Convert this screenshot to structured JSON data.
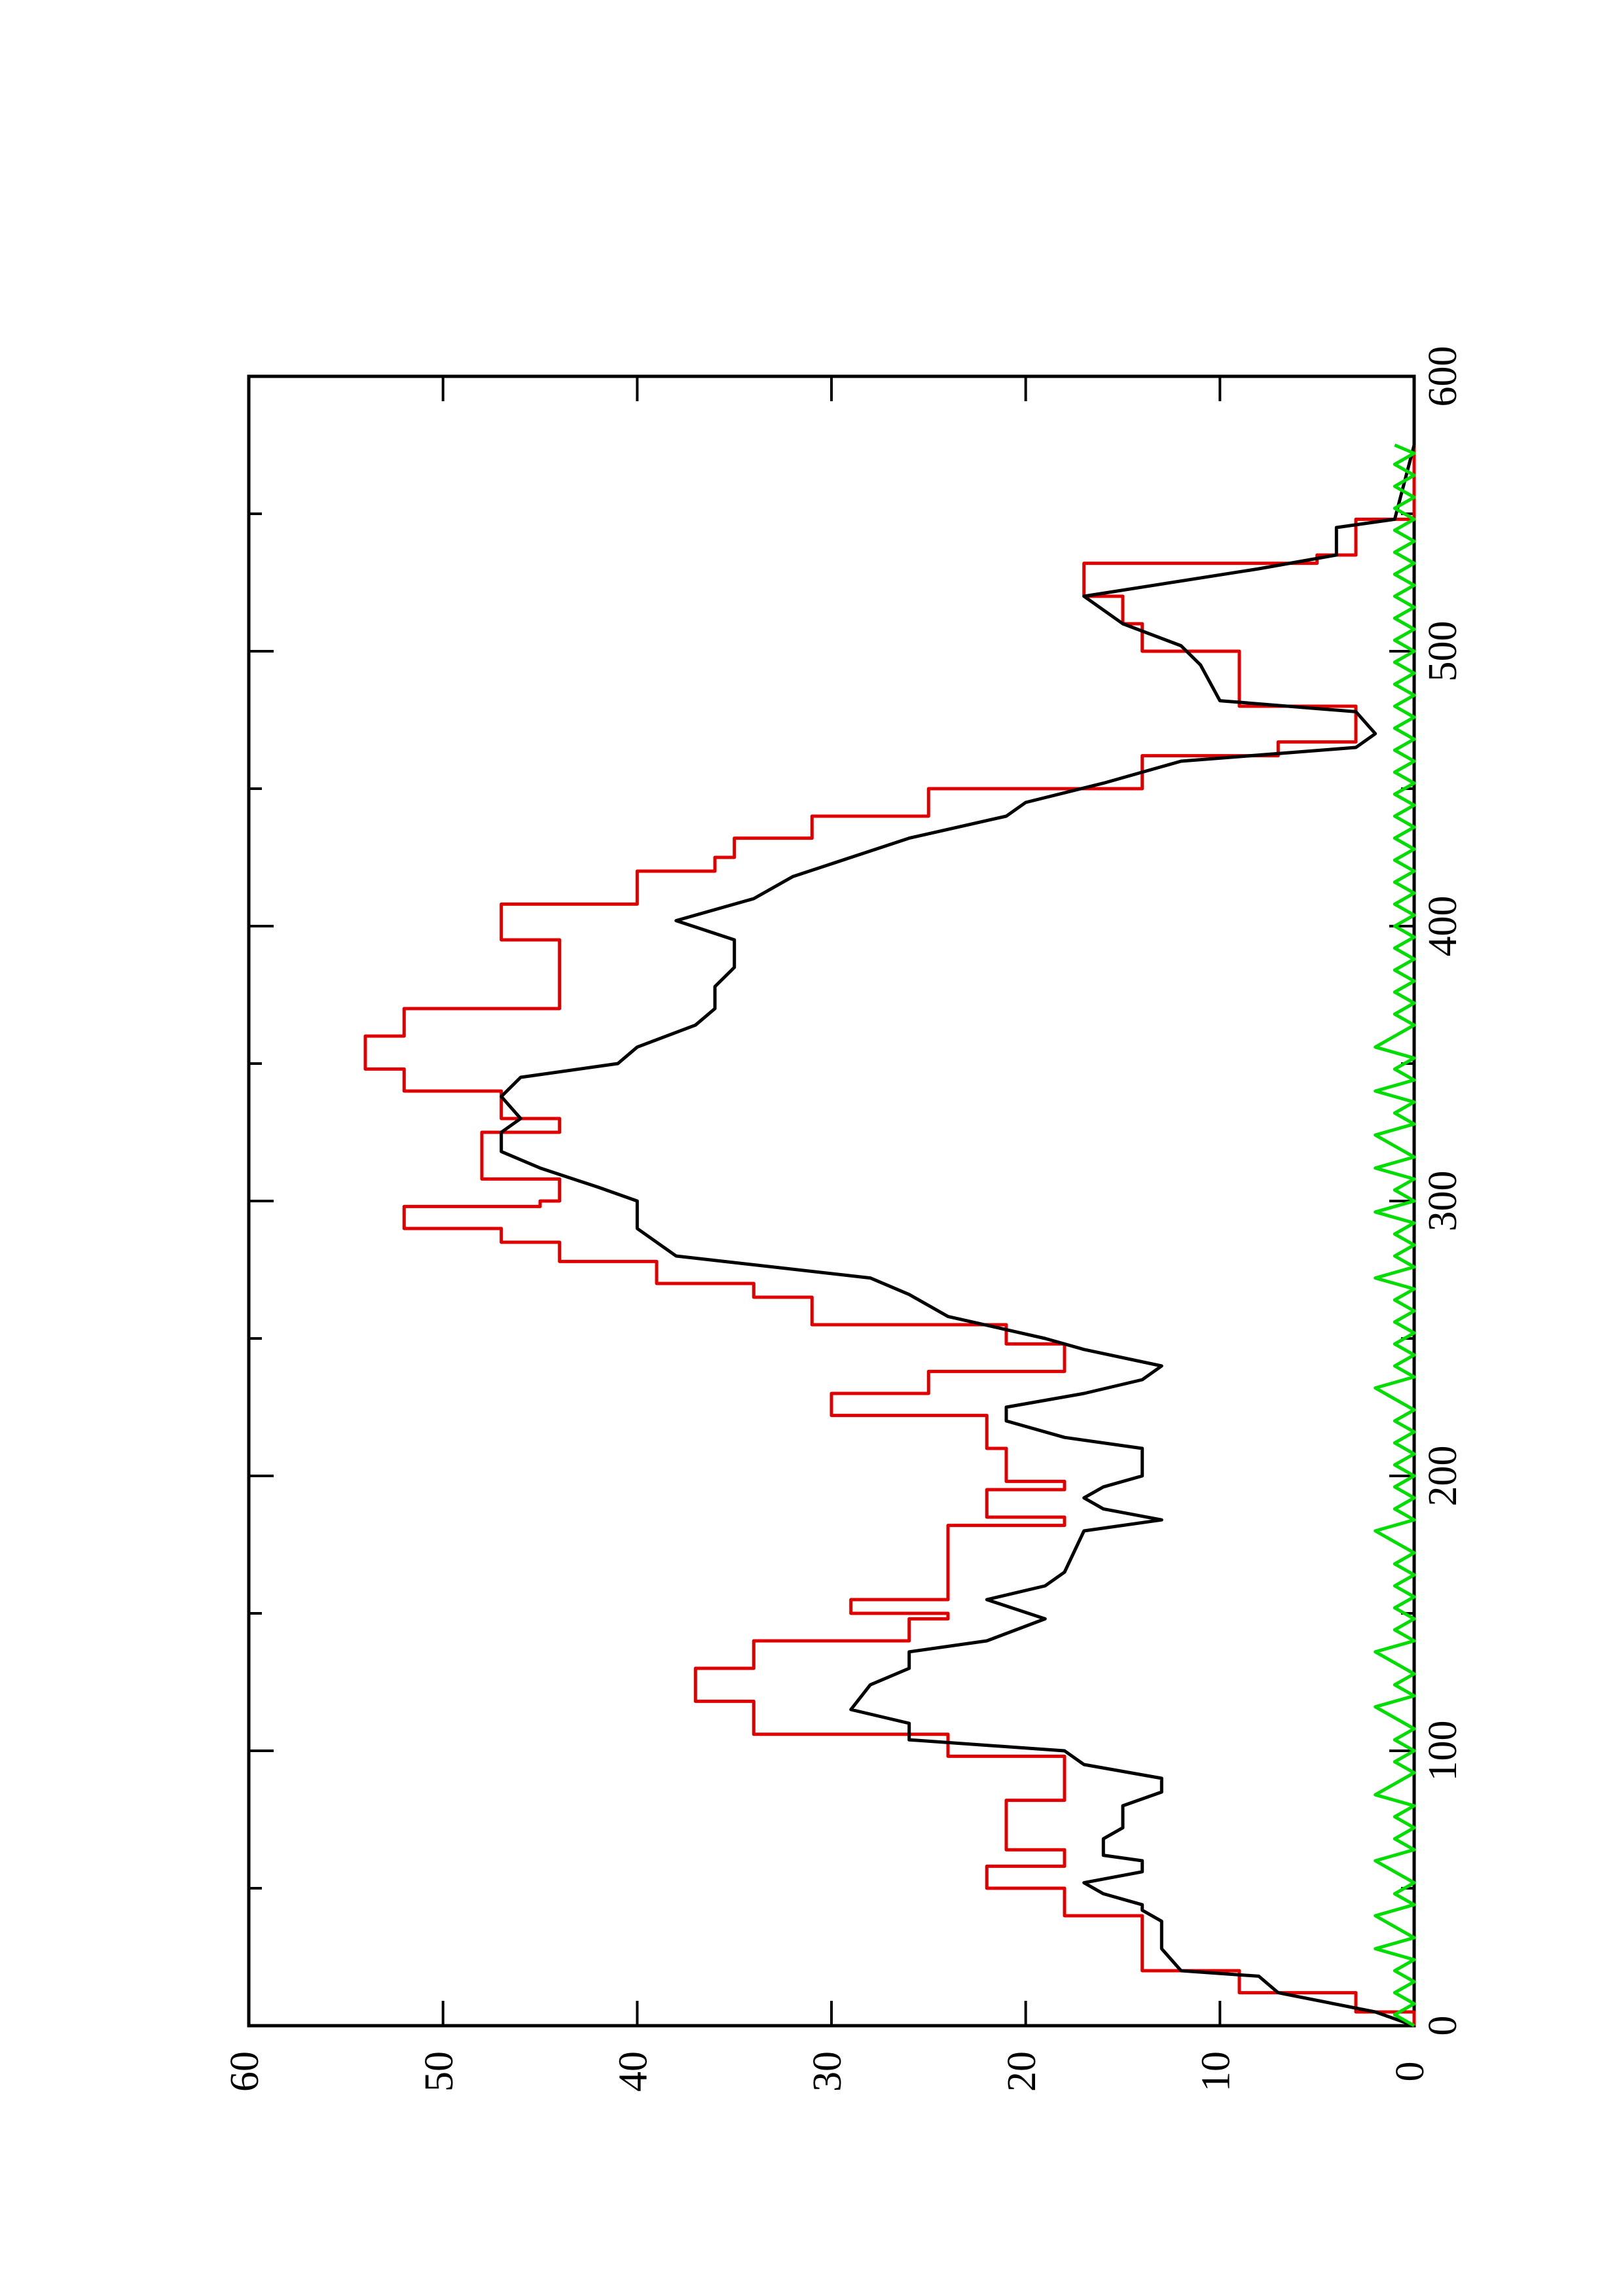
{
  "chart_data": {
    "type": "line",
    "orientation": "rotated-90-ccw",
    "title": "",
    "xlabel": "",
    "ylabel": "",
    "xlim": [
      0,
      600
    ],
    "ylim": [
      0,
      60
    ],
    "x_ticks": [
      0,
      100,
      200,
      300,
      400,
      500,
      600
    ],
    "y_ticks": [
      0,
      10,
      20,
      30,
      40,
      50,
      60
    ],
    "grid": false,
    "legend": "none",
    "series": [
      {
        "color": "#e00000",
        "style": "step",
        "points": [
          [
            0,
            0
          ],
          [
            5,
            3
          ],
          [
            12,
            9
          ],
          [
            20,
            14
          ],
          [
            38,
            14
          ],
          [
            40,
            18
          ],
          [
            48,
            18
          ],
          [
            50,
            22
          ],
          [
            55,
            22
          ],
          [
            58,
            18
          ],
          [
            62,
            18
          ],
          [
            64,
            21
          ],
          [
            80,
            21
          ],
          [
            82,
            18
          ],
          [
            88,
            18
          ],
          [
            98,
            24
          ],
          [
            100,
            24
          ],
          [
            106,
            34
          ],
          [
            115,
            34
          ],
          [
            118,
            37
          ],
          [
            125,
            37
          ],
          [
            130,
            34
          ],
          [
            135,
            34
          ],
          [
            140,
            26
          ],
          [
            143,
            26
          ],
          [
            148,
            24
          ],
          [
            150,
            29
          ],
          [
            155,
            24
          ],
          [
            180,
            24
          ],
          [
            182,
            18
          ],
          [
            185,
            22
          ],
          [
            190,
            22
          ],
          [
            195,
            18
          ],
          [
            198,
            21
          ],
          [
            205,
            21
          ],
          [
            210,
            22
          ],
          [
            218,
            22
          ],
          [
            222,
            30
          ],
          [
            230,
            25
          ],
          [
            238,
            18
          ],
          [
            248,
            21
          ],
          [
            255,
            31
          ],
          [
            265,
            34
          ],
          [
            270,
            39
          ],
          [
            278,
            44
          ],
          [
            285,
            47
          ],
          [
            290,
            52
          ],
          [
            298,
            45
          ],
          [
            300,
            44
          ],
          [
            303,
            44
          ],
          [
            308,
            48
          ],
          [
            322,
            48
          ],
          [
            325,
            44
          ],
          [
            330,
            47
          ],
          [
            340,
            52
          ],
          [
            345,
            52
          ],
          [
            348,
            54
          ],
          [
            355,
            54
          ],
          [
            360,
            52
          ],
          [
            370,
            44
          ],
          [
            392,
            44
          ],
          [
            395,
            47
          ],
          [
            400,
            47
          ],
          [
            408,
            40
          ],
          [
            420,
            36
          ],
          [
            425,
            35
          ],
          [
            432,
            31
          ],
          [
            440,
            25
          ],
          [
            450,
            14
          ],
          [
            455,
            14
          ],
          [
            462,
            7
          ],
          [
            467,
            3
          ],
          [
            478,
            3
          ],
          [
            480,
            9
          ],
          [
            495,
            9
          ],
          [
            500,
            14
          ],
          [
            510,
            15
          ],
          [
            520,
            17
          ],
          [
            532,
            5
          ],
          [
            535,
            3
          ],
          [
            545,
            3
          ],
          [
            548,
            0
          ],
          [
            575,
            0
          ]
        ]
      },
      {
        "color": "#000000",
        "style": "line",
        "points": [
          [
            0,
            0
          ],
          [
            5,
            2
          ],
          [
            12,
            7
          ],
          [
            18,
            8
          ],
          [
            20,
            12
          ],
          [
            28,
            13
          ],
          [
            32,
            13
          ],
          [
            38,
            13
          ],
          [
            42,
            14
          ],
          [
            44,
            14
          ],
          [
            46,
            15
          ],
          [
            48,
            16
          ],
          [
            52,
            17
          ],
          [
            56,
            14
          ],
          [
            60,
            14
          ],
          [
            62,
            16
          ],
          [
            68,
            16
          ],
          [
            72,
            15
          ],
          [
            80,
            15
          ],
          [
            85,
            13
          ],
          [
            90,
            13
          ],
          [
            95,
            17
          ],
          [
            100,
            18
          ],
          [
            104,
            26
          ],
          [
            110,
            26
          ],
          [
            115,
            29
          ],
          [
            124,
            28
          ],
          [
            130,
            26
          ],
          [
            136,
            26
          ],
          [
            140,
            22
          ],
          [
            148,
            19
          ],
          [
            155,
            22
          ],
          [
            160,
            19
          ],
          [
            165,
            18
          ],
          [
            180,
            17
          ],
          [
            184,
            13
          ],
          [
            188,
            16
          ],
          [
            192,
            17
          ],
          [
            196,
            16
          ],
          [
            200,
            14
          ],
          [
            205,
            14
          ],
          [
            210,
            14
          ],
          [
            214,
            18
          ],
          [
            220,
            21
          ],
          [
            225,
            21
          ],
          [
            230,
            17
          ],
          [
            235,
            14
          ],
          [
            240,
            13
          ],
          [
            246,
            17
          ],
          [
            250,
            19
          ],
          [
            258,
            24
          ],
          [
            266,
            26
          ],
          [
            272,
            28
          ],
          [
            280,
            38
          ],
          [
            285,
            39
          ],
          [
            290,
            40
          ],
          [
            300,
            40
          ],
          [
            305,
            42
          ],
          [
            312,
            45
          ],
          [
            318,
            47
          ],
          [
            325,
            47
          ],
          [
            330,
            46
          ],
          [
            338,
            47
          ],
          [
            345,
            46
          ],
          [
            350,
            41
          ],
          [
            356,
            40
          ],
          [
            364,
            37
          ],
          [
            370,
            36
          ],
          [
            378,
            36
          ],
          [
            385,
            35
          ],
          [
            395,
            35
          ],
          [
            402,
            38
          ],
          [
            410,
            34
          ],
          [
            418,
            32
          ],
          [
            425,
            29
          ],
          [
            432,
            26
          ],
          [
            440,
            21
          ],
          [
            445,
            20
          ],
          [
            452,
            16
          ],
          [
            460,
            12
          ],
          [
            465,
            3
          ],
          [
            470,
            2
          ],
          [
            478,
            3
          ],
          [
            482,
            10
          ],
          [
            495,
            11
          ],
          [
            502,
            12
          ],
          [
            510,
            15
          ],
          [
            520,
            17
          ],
          [
            530,
            8
          ],
          [
            535,
            4
          ],
          [
            545,
            4
          ],
          [
            548,
            1
          ],
          [
            575,
            0
          ]
        ]
      },
      {
        "color": "#00dd00",
        "style": "line",
        "noise": true,
        "points": [
          [
            0,
            0
          ],
          [
            4,
            1
          ],
          [
            8,
            0
          ],
          [
            12,
            1
          ],
          [
            16,
            0
          ],
          [
            20,
            1
          ],
          [
            24,
            0
          ],
          [
            28,
            2
          ],
          [
            32,
            0
          ],
          [
            36,
            1
          ],
          [
            40,
            2
          ],
          [
            44,
            0
          ],
          [
            48,
            1
          ],
          [
            52,
            0
          ],
          [
            56,
            1
          ],
          [
            60,
            2
          ],
          [
            64,
            0
          ],
          [
            68,
            1
          ],
          [
            72,
            0
          ],
          [
            76,
            1
          ],
          [
            80,
            0
          ],
          [
            84,
            2
          ],
          [
            88,
            1
          ],
          [
            92,
            0
          ],
          [
            96,
            1
          ],
          [
            100,
            0
          ],
          [
            104,
            1
          ],
          [
            108,
            0
          ],
          [
            112,
            1
          ],
          [
            116,
            2
          ],
          [
            120,
            0
          ],
          [
            124,
            1
          ],
          [
            128,
            0
          ],
          [
            132,
            1
          ],
          [
            136,
            2
          ],
          [
            140,
            0
          ],
          [
            144,
            1
          ],
          [
            148,
            0
          ],
          [
            152,
            1
          ],
          [
            156,
            0
          ],
          [
            160,
            1
          ],
          [
            164,
            0
          ],
          [
            168,
            1
          ],
          [
            172,
            0
          ],
          [
            176,
            1
          ],
          [
            180,
            2
          ],
          [
            184,
            0
          ],
          [
            188,
            1
          ],
          [
            192,
            0
          ],
          [
            196,
            1
          ],
          [
            200,
            0
          ],
          [
            204,
            1
          ],
          [
            208,
            0
          ],
          [
            212,
            1
          ],
          [
            216,
            0
          ],
          [
            220,
            1
          ],
          [
            224,
            0
          ],
          [
            228,
            1
          ],
          [
            232,
            2
          ],
          [
            236,
            0
          ],
          [
            240,
            1
          ],
          [
            244,
            0
          ],
          [
            248,
            1
          ],
          [
            252,
            0
          ],
          [
            256,
            1
          ],
          [
            260,
            0
          ],
          [
            264,
            1
          ],
          [
            268,
            0
          ],
          [
            272,
            2
          ],
          [
            276,
            0
          ],
          [
            280,
            1
          ],
          [
            284,
            0
          ],
          [
            288,
            1
          ],
          [
            292,
            0
          ],
          [
            296,
            2
          ],
          [
            300,
            0
          ],
          [
            304,
            1
          ],
          [
            308,
            0
          ],
          [
            312,
            2
          ],
          [
            316,
            0
          ],
          [
            320,
            1
          ],
          [
            324,
            2
          ],
          [
            328,
            0
          ],
          [
            332,
            1
          ],
          [
            336,
            0
          ],
          [
            340,
            2
          ],
          [
            344,
            0
          ],
          [
            348,
            1
          ],
          [
            352,
            0
          ],
          [
            356,
            2
          ],
          [
            360,
            1
          ],
          [
            364,
            0
          ],
          [
            368,
            1
          ],
          [
            372,
            0
          ],
          [
            376,
            1
          ],
          [
            380,
            0
          ],
          [
            384,
            1
          ],
          [
            388,
            0
          ],
          [
            392,
            1
          ],
          [
            396,
            0
          ],
          [
            400,
            1
          ],
          [
            404,
            0
          ],
          [
            408,
            1
          ],
          [
            412,
            0
          ],
          [
            416,
            1
          ],
          [
            420,
            0
          ],
          [
            424,
            1
          ],
          [
            428,
            0
          ],
          [
            432,
            1
          ],
          [
            436,
            0
          ],
          [
            440,
            1
          ],
          [
            444,
            0
          ],
          [
            448,
            1
          ],
          [
            452,
            0
          ],
          [
            456,
            1
          ],
          [
            460,
            0
          ],
          [
            464,
            1
          ],
          [
            468,
            0
          ],
          [
            472,
            1
          ],
          [
            476,
            0
          ],
          [
            480,
            1
          ],
          [
            484,
            0
          ],
          [
            488,
            1
          ],
          [
            492,
            0
          ],
          [
            496,
            1
          ],
          [
            500,
            0
          ],
          [
            504,
            1
          ],
          [
            508,
            0
          ],
          [
            512,
            1
          ],
          [
            516,
            0
          ],
          [
            520,
            1
          ],
          [
            524,
            0
          ],
          [
            528,
            1
          ],
          [
            532,
            0
          ],
          [
            536,
            1
          ],
          [
            540,
            0
          ],
          [
            544,
            1
          ],
          [
            548,
            0
          ],
          [
            552,
            1
          ],
          [
            556,
            0
          ],
          [
            560,
            1
          ],
          [
            564,
            0
          ],
          [
            568,
            1
          ],
          [
            572,
            0
          ],
          [
            575,
            1
          ]
        ]
      }
    ]
  }
}
